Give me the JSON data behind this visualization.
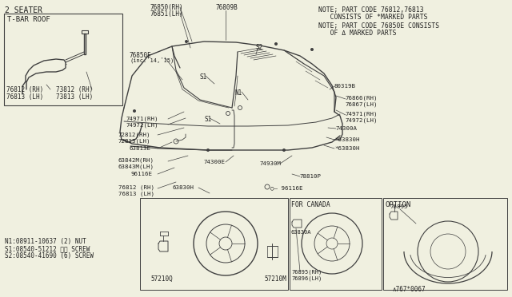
{
  "bg_color": "#f0f0e0",
  "line_color": "#404040",
  "text_color": "#202020",
  "notes_text": [
    "NOTE; PART CODE 76812,76813",
    "   CONSISTS OF *MARKED PARTS",
    "NOTE; PART CODE 76850E CONSISTS",
    "   OF Δ MARKED PARTS"
  ],
  "legend_text": [
    "N1:08911-10637 (2) NUT",
    "S1:08540-51212 ①② SCREW",
    "S2:08540-41690 (6) SCREW"
  ],
  "bottom_part_num": "∧767*0067"
}
